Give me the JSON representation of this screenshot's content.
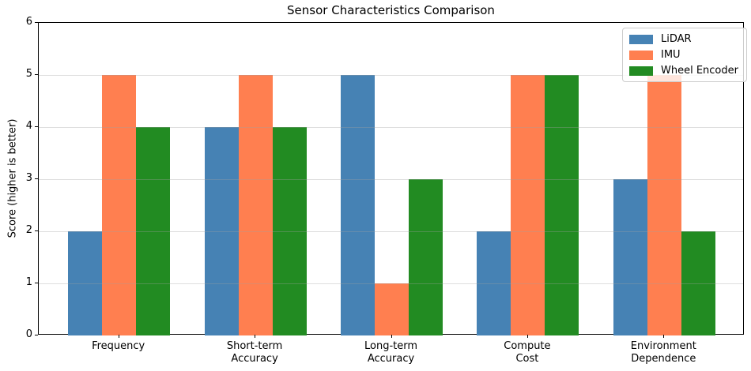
{
  "title": "Sensor Characteristics Comparison",
  "chart_data": {
    "type": "bar",
    "title": "Sensor Characteristics Comparison",
    "xlabel": "",
    "ylabel": "Score (higher is better)",
    "categories": [
      "Frequency",
      "Short-term\nAccuracy",
      "Long-term\nAccuracy",
      "Compute\nCost",
      "Environment\nDependence"
    ],
    "series": [
      {
        "name": "LiDAR",
        "color": "#4682B4",
        "values": [
          2,
          4,
          5,
          2,
          3
        ]
      },
      {
        "name": "IMU",
        "color": "#FF7F50",
        "values": [
          5,
          5,
          1,
          5,
          5
        ]
      },
      {
        "name": "Wheel Encoder",
        "color": "#228B22",
        "values": [
          4,
          4,
          3,
          5,
          2
        ]
      }
    ],
    "ylim": [
      0,
      6
    ],
    "yticks": [
      0,
      1,
      2,
      3,
      4,
      5,
      6
    ],
    "xlim": [
      -0.59,
      4.59
    ],
    "bar_width": 0.25,
    "grid": "horizontal",
    "grid_above_bars": true,
    "legend_position": "upper right"
  }
}
